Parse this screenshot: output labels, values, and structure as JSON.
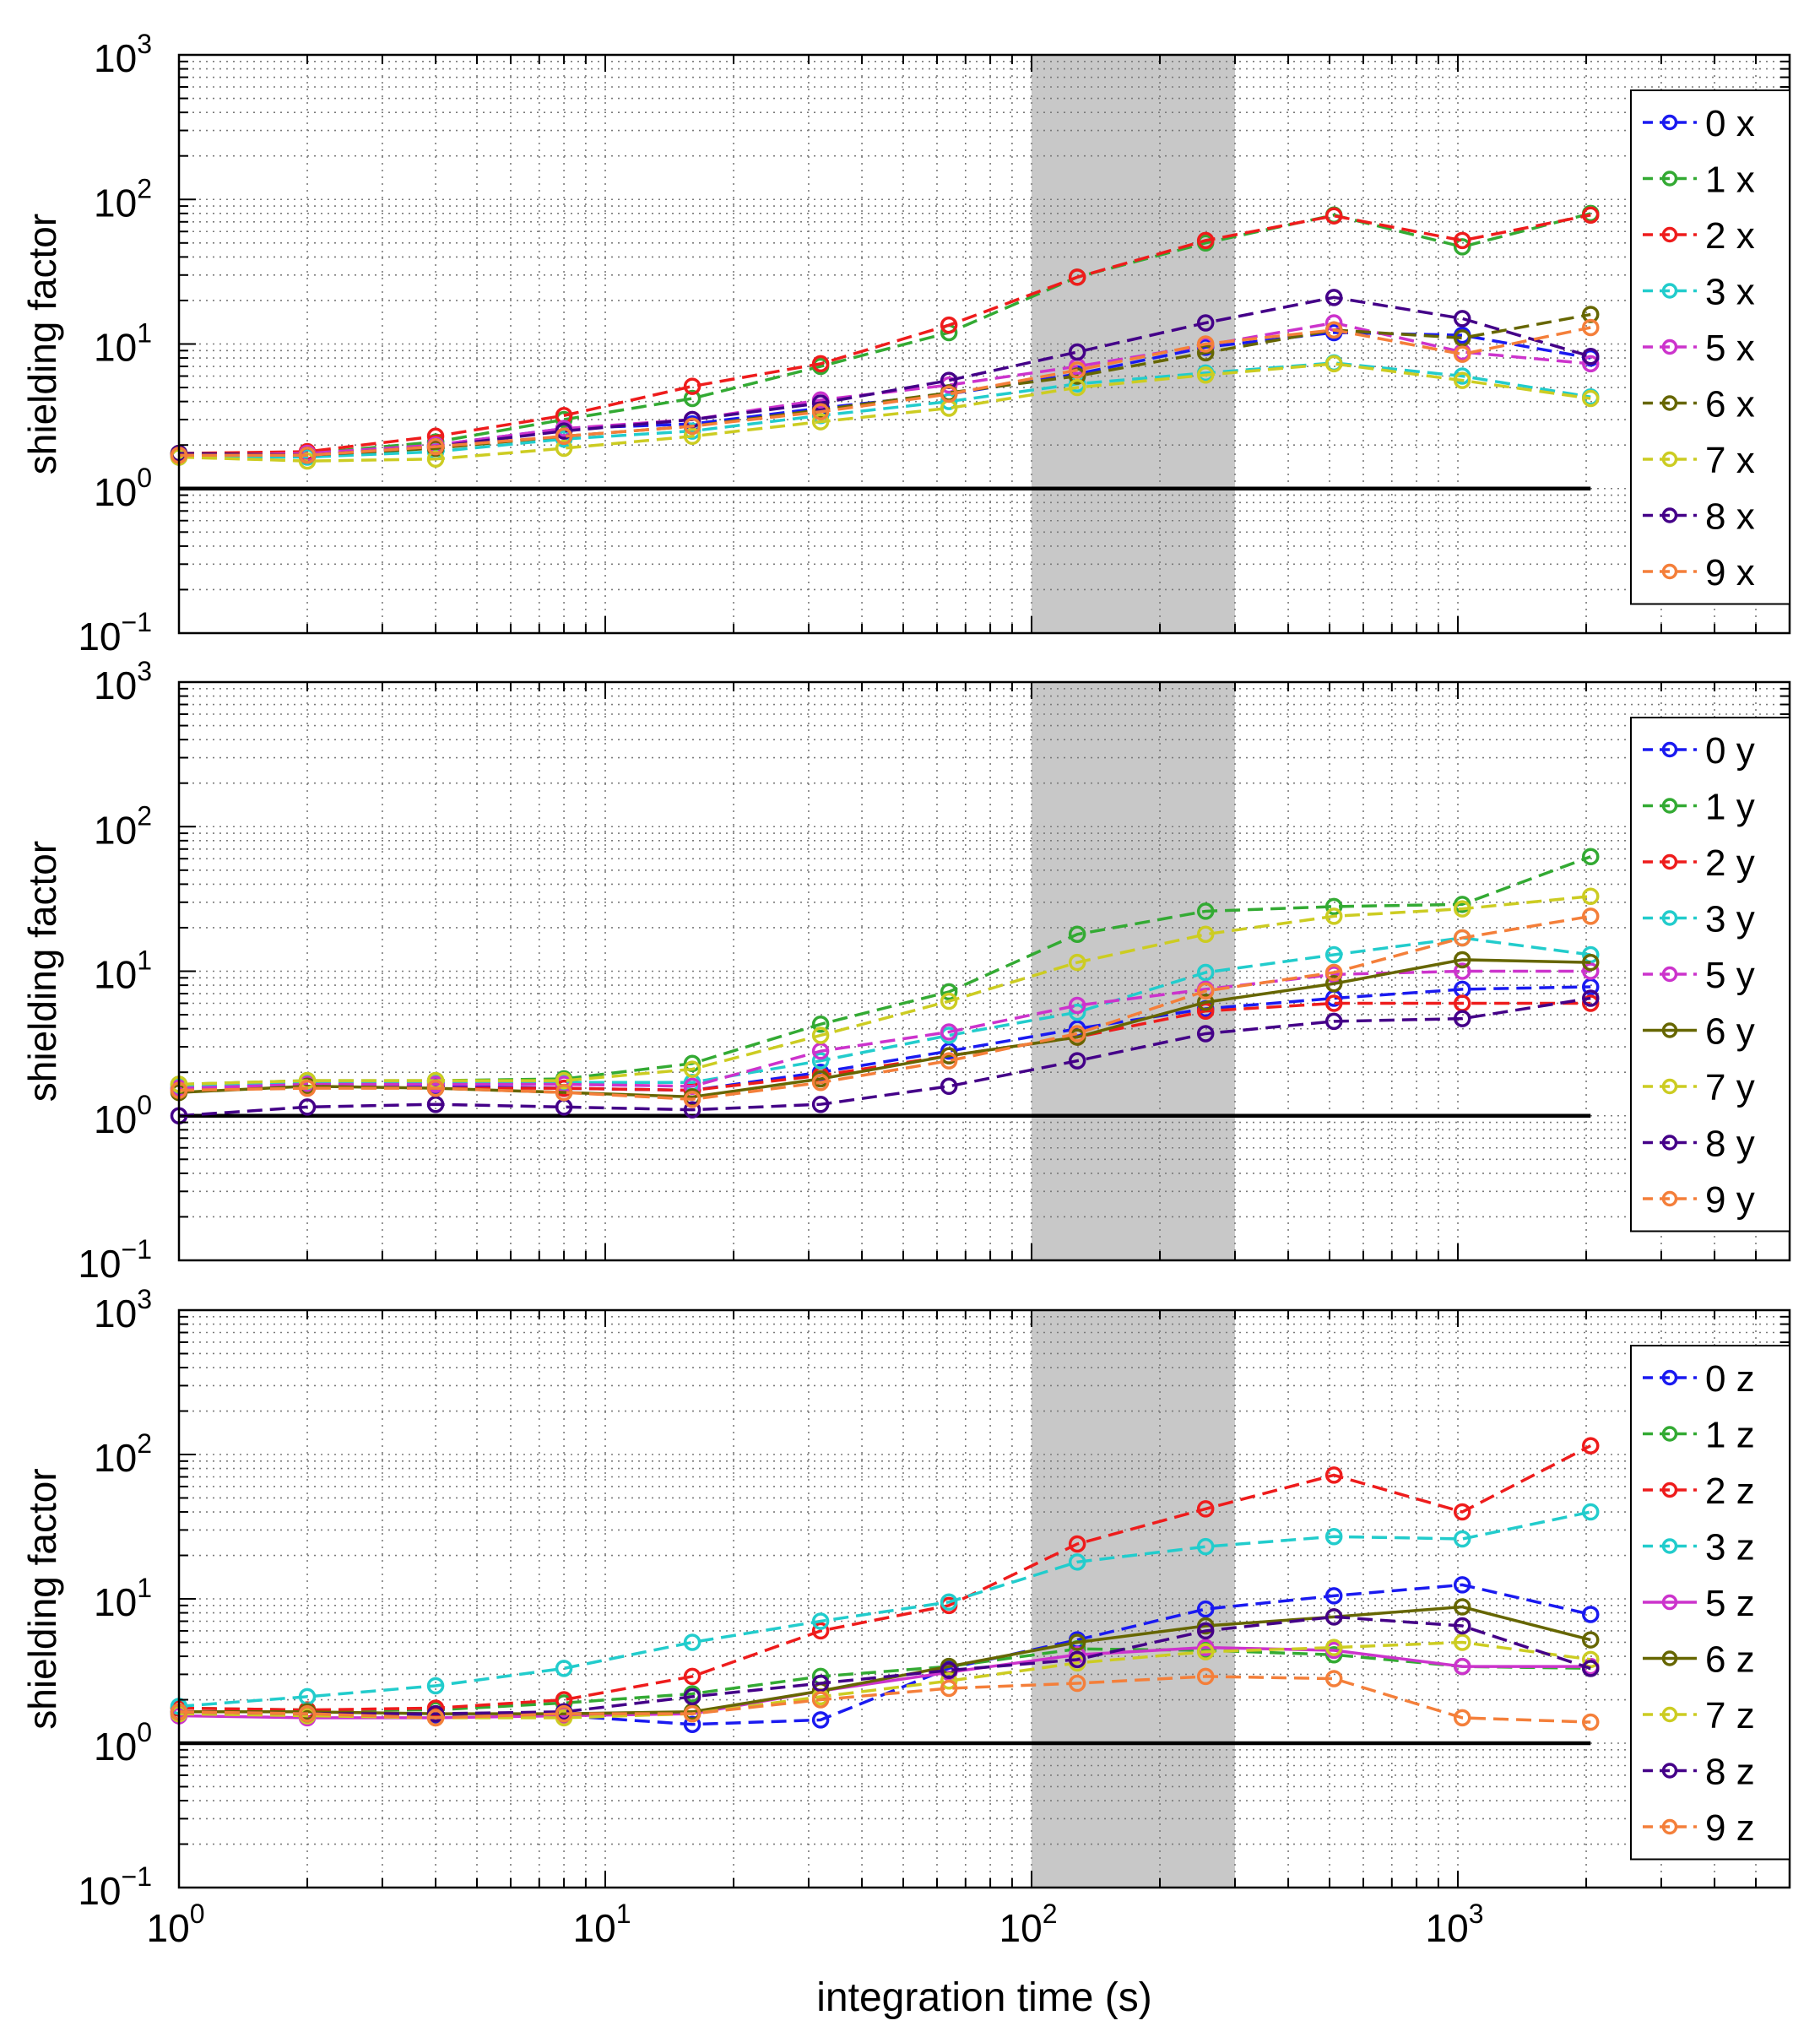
{
  "figure": {
    "xlabel": "integration time (s)",
    "x_range": [
      1,
      6000
    ],
    "y_range": [
      0.1,
      1000
    ],
    "x_ticks": [
      {
        "base": "10",
        "exp": "0",
        "value": 1
      },
      {
        "base": "10",
        "exp": "1",
        "value": 10
      },
      {
        "base": "10",
        "exp": "2",
        "value": 100
      },
      {
        "base": "10",
        "exp": "3",
        "value": 1000
      }
    ],
    "y_ticks": [
      {
        "base": "10",
        "exp": "−1",
        "value": 0.1
      },
      {
        "base": "10",
        "exp": "0",
        "value": 1
      },
      {
        "base": "10",
        "exp": "1",
        "value": 10
      },
      {
        "base": "10",
        "exp": "2",
        "value": 100
      },
      {
        "base": "10",
        "exp": "3",
        "value": 1000
      }
    ],
    "shaded_range": [
      100,
      300
    ],
    "reference_line": {
      "y": 1,
      "x_end": 2048
    }
  },
  "chart_data": [
    {
      "type": "line",
      "title": "",
      "xlabel": "",
      "ylabel": "shielding factor",
      "xscale": "log",
      "yscale": "log",
      "xlim": [
        1,
        6000
      ],
      "ylim": [
        0.1,
        1000
      ],
      "grid": true,
      "legend_position": "right",
      "x": [
        1,
        2,
        4,
        8,
        16,
        32,
        64,
        128,
        256,
        512,
        1024,
        2048
      ],
      "series": [
        {
          "name": "0 x",
          "color": "#1a1af0",
          "style": "dashed",
          "values": [
            1.7,
            1.7,
            2.0,
            2.6,
            2.8,
            3.6,
            4.5,
            6.2,
            9.5,
            12,
            11.5,
            8
          ]
        },
        {
          "name": "1 x",
          "color": "#33aa33",
          "style": "dashed",
          "values": [
            1.75,
            1.75,
            2.1,
            3.0,
            4.2,
            7.0,
            12,
            29,
            50,
            78,
            47,
            80
          ]
        },
        {
          "name": "2 x",
          "color": "#ee1c1c",
          "style": "dashed",
          "values": [
            1.75,
            1.8,
            2.3,
            3.2,
            5.1,
            7.3,
            13.5,
            29,
            52,
            77,
            52,
            78
          ]
        },
        {
          "name": "3 x",
          "color": "#22cccc",
          "style": "dashed",
          "values": [
            1.65,
            1.65,
            1.8,
            2.2,
            2.5,
            3.2,
            4.0,
            5.3,
            6.3,
            7.4,
            6.0,
            4.3
          ]
        },
        {
          "name": "5 x",
          "color": "#cc33cc",
          "style": "dashed",
          "values": [
            1.7,
            1.75,
            2.0,
            2.6,
            3.0,
            4.1,
            5.2,
            7.0,
            9.8,
            14,
            8.8,
            7.3
          ]
        },
        {
          "name": "6 x",
          "color": "#666600",
          "style": "dashed",
          "values": [
            1.75,
            1.7,
            1.9,
            2.3,
            2.7,
            3.5,
            4.6,
            6.0,
            8.7,
            12.5,
            11,
            16
          ]
        },
        {
          "name": "7 x",
          "color": "#cccc22",
          "style": "dashed",
          "values": [
            1.65,
            1.55,
            1.6,
            1.9,
            2.3,
            2.9,
            3.6,
            5.0,
            6.1,
            7.3,
            5.6,
            4.2
          ]
        },
        {
          "name": "8 x",
          "color": "#440088",
          "style": "dashed",
          "values": [
            1.75,
            1.7,
            1.95,
            2.5,
            3.0,
            3.9,
            5.6,
            8.8,
            14,
            21,
            15,
            8.2
          ]
        },
        {
          "name": "9 x",
          "color": "#f47f3a",
          "style": "dashed",
          "values": [
            1.7,
            1.7,
            1.95,
            2.3,
            2.7,
            3.4,
            4.5,
            6.6,
            10,
            12.5,
            8.5,
            13
          ]
        }
      ]
    },
    {
      "type": "line",
      "title": "",
      "xlabel": "",
      "ylabel": "shielding factor",
      "xscale": "log",
      "yscale": "log",
      "xlim": [
        1,
        6000
      ],
      "ylim": [
        0.1,
        1000
      ],
      "grid": true,
      "legend_position": "right",
      "x": [
        1,
        2,
        4,
        8,
        16,
        32,
        64,
        128,
        256,
        512,
        1024,
        2048
      ],
      "series": [
        {
          "name": "0 y",
          "color": "#1a1af0",
          "style": "dashed",
          "values": [
            1.55,
            1.65,
            1.6,
            1.55,
            1.5,
            2.0,
            2.8,
            4.0,
            5.5,
            6.5,
            7.5,
            7.8
          ]
        },
        {
          "name": "1 y",
          "color": "#33aa33",
          "style": "dashed",
          "values": [
            1.65,
            1.75,
            1.75,
            1.8,
            2.3,
            4.3,
            7.2,
            18,
            26,
            28,
            29,
            62
          ]
        },
        {
          "name": "2 y",
          "color": "#ee1c1c",
          "style": "dashed",
          "values": [
            1.5,
            1.6,
            1.55,
            1.55,
            1.5,
            1.9,
            2.6,
            3.5,
            5.3,
            6.0,
            6.0,
            6.0
          ]
        },
        {
          "name": "3 y",
          "color": "#22cccc",
          "style": "dashed",
          "values": [
            1.6,
            1.7,
            1.7,
            1.7,
            1.7,
            2.4,
            3.6,
            5.2,
            9.8,
            13,
            17,
            13
          ]
        },
        {
          "name": "5 y",
          "color": "#cc33cc",
          "style": "dashed",
          "values": [
            1.55,
            1.65,
            1.65,
            1.65,
            1.6,
            2.8,
            3.8,
            5.8,
            7.5,
            9.5,
            10,
            10
          ]
        },
        {
          "name": "6 y",
          "color": "#666600",
          "style": "solid",
          "values": [
            1.45,
            1.6,
            1.55,
            1.45,
            1.35,
            1.8,
            2.6,
            3.5,
            6.1,
            8.2,
            12,
            11.5
          ]
        },
        {
          "name": "7 y",
          "color": "#cccc22",
          "style": "dashed",
          "values": [
            1.65,
            1.75,
            1.75,
            1.75,
            2.1,
            3.6,
            6.2,
            11.5,
            18,
            24,
            27,
            33
          ]
        },
        {
          "name": "8 y",
          "color": "#440088",
          "style": "dashed",
          "values": [
            1.0,
            1.15,
            1.2,
            1.15,
            1.1,
            1.2,
            1.6,
            2.4,
            3.7,
            4.5,
            4.7,
            6.5
          ]
        },
        {
          "name": "9 y",
          "color": "#f47f3a",
          "style": "dashed",
          "values": [
            1.5,
            1.55,
            1.55,
            1.45,
            1.3,
            1.7,
            2.4,
            3.7,
            7.3,
            9.8,
            17,
            24
          ]
        }
      ]
    },
    {
      "type": "line",
      "title": "",
      "xlabel": "integration time (s)",
      "ylabel": "shielding factor",
      "xscale": "log",
      "yscale": "log",
      "xlim": [
        1,
        6000
      ],
      "ylim": [
        0.1,
        1000
      ],
      "grid": true,
      "legend_position": "right",
      "x": [
        1,
        2,
        4,
        8,
        16,
        32,
        64,
        128,
        256,
        512,
        1024,
        2048
      ],
      "series": [
        {
          "name": "0 z",
          "color": "#1a1af0",
          "style": "dashed",
          "values": [
            1.6,
            1.6,
            1.55,
            1.55,
            1.35,
            1.45,
            3.3,
            5.2,
            8.5,
            10.5,
            12.5,
            7.8
          ]
        },
        {
          "name": "1 z",
          "color": "#33aa33",
          "style": "dashed",
          "values": [
            1.75,
            1.7,
            1.7,
            1.9,
            2.2,
            2.9,
            3.4,
            4.5,
            4.4,
            4.1,
            3.4,
            3.3
          ]
        },
        {
          "name": "2 z",
          "color": "#ee1c1c",
          "style": "dashed",
          "values": [
            1.75,
            1.7,
            1.75,
            2.0,
            2.9,
            6.0,
            9.0,
            24,
            42,
            72,
            40,
            115
          ]
        },
        {
          "name": "3 z",
          "color": "#22cccc",
          "style": "dashed",
          "values": [
            1.8,
            2.1,
            2.5,
            3.3,
            5.0,
            7.0,
            9.5,
            18,
            23,
            27,
            26,
            40
          ]
        },
        {
          "name": "5 z",
          "color": "#cc33cc",
          "style": "solid",
          "values": [
            1.55,
            1.5,
            1.5,
            1.55,
            1.6,
            2.3,
            3.1,
            4.1,
            4.6,
            4.4,
            3.4,
            3.4
          ]
        },
        {
          "name": "6 z",
          "color": "#666600",
          "style": "solid",
          "values": [
            1.65,
            1.65,
            1.6,
            1.6,
            1.65,
            2.3,
            3.4,
            5.0,
            6.5,
            7.5,
            8.8,
            5.2
          ]
        },
        {
          "name": "7 z",
          "color": "#cccc22",
          "style": "dashed",
          "values": [
            1.6,
            1.55,
            1.5,
            1.5,
            1.6,
            2.1,
            2.7,
            3.6,
            4.3,
            4.6,
            5.0,
            3.8
          ]
        },
        {
          "name": "8 z",
          "color": "#440088",
          "style": "dashed",
          "values": [
            1.65,
            1.6,
            1.6,
            1.65,
            2.1,
            2.6,
            3.2,
            3.8,
            6.0,
            7.5,
            6.5,
            3.3
          ]
        },
        {
          "name": "9 z",
          "color": "#f47f3a",
          "style": "dashed",
          "values": [
            1.65,
            1.6,
            1.5,
            1.6,
            1.6,
            2.0,
            2.4,
            2.6,
            2.9,
            2.8,
            1.5,
            1.4
          ]
        }
      ]
    }
  ]
}
